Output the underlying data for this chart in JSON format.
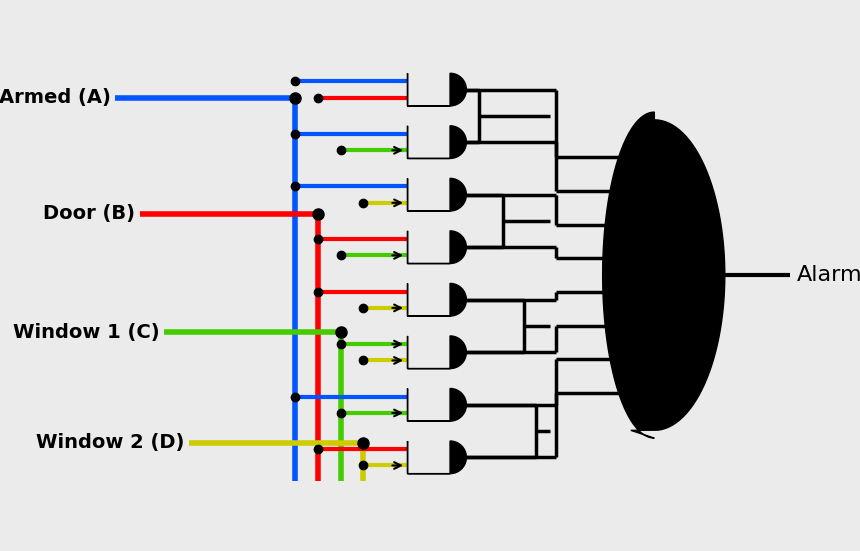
{
  "bg_color": "#ebebeb",
  "input_labels": [
    "Armed (A)",
    "Door (B)",
    "Window 1 (C)",
    "Window 2 (D)"
  ],
  "input_colors": [
    "#0055ff",
    "#ff0000",
    "#44cc00",
    "#cccc00"
  ],
  "num_and_gates": 8,
  "alarm_label": "Alarm"
}
